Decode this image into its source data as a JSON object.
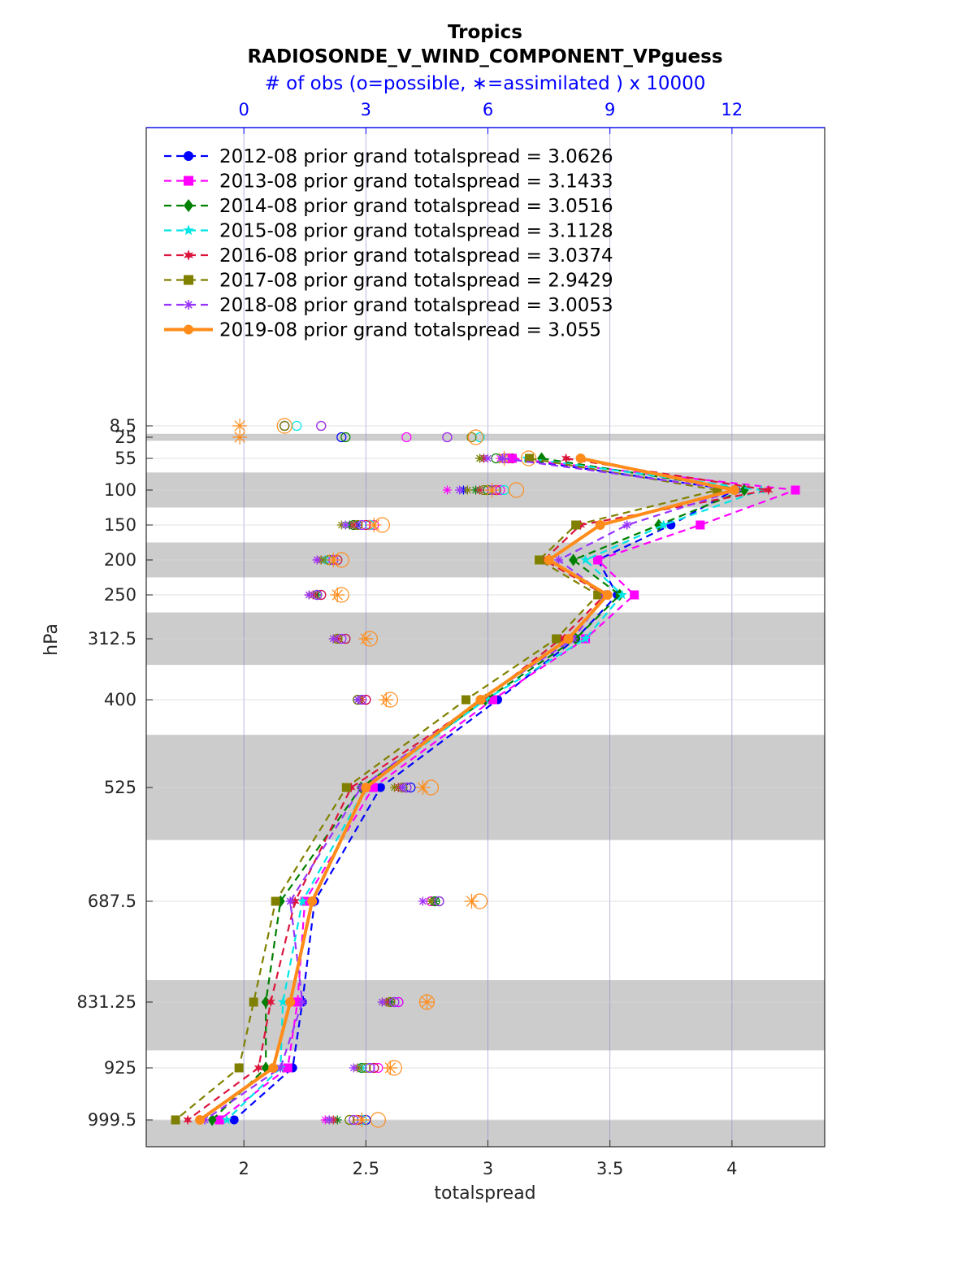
{
  "chart_data": {
    "type": "line",
    "title": "Tropics",
    "subtitle": "RADIOSONDE_V_WIND_COMPONENT_VPguess",
    "top_axis_label": "# of obs (o=possible, ∗=assimilated ) x 10000",
    "xlabel": "totalspread",
    "ylabel": "hPa",
    "xlim": [
      1.6,
      4.38
    ],
    "xticks": [
      "2",
      "2.5",
      "3",
      "3.5",
      "4"
    ],
    "top_xlim": [
      -2.4,
      14.28
    ],
    "top_xticks": [
      "0",
      "3",
      "6",
      "9",
      "12"
    ],
    "y_scale": "pressure (reversed)",
    "yticks": [
      "8.5",
      "25",
      "55",
      "100",
      "150",
      "200",
      "250",
      "312.5",
      "400",
      "525",
      "687.5",
      "831.25",
      "925",
      "999.5"
    ],
    "grid": true,
    "legend_position": "top-left",
    "shaded_bands_hPa": [
      [
        20,
        30
      ],
      [
        75,
        125
      ],
      [
        175,
        225
      ],
      [
        275,
        350
      ],
      [
        450,
        600
      ],
      [
        800,
        900
      ],
      [
        1000,
        1050
      ]
    ],
    "levels": [
      55,
      100,
      150,
      200,
      250,
      312.5,
      400,
      525,
      687.5,
      831.25,
      925,
      999.5
    ],
    "series": [
      {
        "name": "2012-08 prior grand totalspread = 3.0626",
        "color": "#0000ff",
        "marker": "circle",
        "style": "dashed",
        "values": [
          3.1,
          4.01,
          3.75,
          3.45,
          3.53,
          3.36,
          3.04,
          2.56,
          2.29,
          2.24,
          2.2,
          1.96
        ],
        "obs_possible": [
          6.6,
          6.2,
          3.1,
          2.2,
          1.9,
          2.5,
          3.0,
          4.1,
          4.8,
          3.8,
          3.2,
          3.0
        ],
        "obs_assimilated": [
          5.9,
          5.4,
          2.8,
          2.0,
          1.8,
          2.3,
          2.8,
          3.9,
          4.7,
          3.6,
          2.8,
          2.1
        ]
      },
      {
        "name": "2013-08 prior grand totalspread = 3.1433",
        "color": "#ff00ff",
        "marker": "square",
        "style": "dashed",
        "values": [
          3.1,
          4.26,
          3.87,
          3.45,
          3.6,
          3.4,
          3.02,
          2.53,
          2.25,
          2.22,
          2.18,
          1.9
        ],
        "obs_possible": [
          6.5,
          6.3,
          3.2,
          2.2,
          1.8,
          2.4,
          3.0,
          4.0,
          4.6,
          3.8,
          3.3,
          2.9
        ],
        "obs_assimilated": [
          6.3,
          5.0,
          2.6,
          1.8,
          1.6,
          2.3,
          2.8,
          3.8,
          4.4,
          3.6,
          2.8,
          2.0
        ]
      },
      {
        "name": "2014-08 prior grand totalspread = 3.0516",
        "color": "#008000",
        "marker": "diamond",
        "style": "dashed",
        "values": [
          3.22,
          4.05,
          3.7,
          3.35,
          3.54,
          3.36,
          2.99,
          2.48,
          2.15,
          2.09,
          2.09,
          1.87
        ],
        "obs_possible": [
          6.2,
          6.0,
          2.7,
          2.1,
          1.8,
          2.3,
          2.8,
          4.0,
          4.7,
          3.6,
          2.9,
          2.6
        ],
        "obs_assimilated": [
          5.8,
          5.7,
          2.6,
          2.0,
          1.8,
          2.3,
          2.8,
          3.9,
          4.7,
          3.6,
          2.9,
          2.3
        ]
      },
      {
        "name": "2015-08 prior grand totalspread = 3.1128",
        "color": "#00e5e5",
        "marker": "star",
        "style": "dashed",
        "values": [
          3.16,
          4.12,
          3.72,
          3.4,
          3.55,
          3.4,
          2.99,
          2.5,
          2.24,
          2.16,
          2.15,
          1.93
        ],
        "obs_possible": [
          6.6,
          6.4,
          3.1,
          2.3,
          1.8,
          2.5,
          2.9,
          4.0,
          4.8,
          3.7,
          3.1,
          2.9
        ],
        "obs_assimilated": [
          5.9,
          5.8,
          2.5,
          2.0,
          1.7,
          2.3,
          2.8,
          3.9,
          4.6,
          3.5,
          2.9,
          2.1
        ]
      },
      {
        "name": "2016-08 prior grand totalspread = 3.0374",
        "color": "#dc143c",
        "marker": "hexagram",
        "style": "dashed",
        "values": [
          3.32,
          4.15,
          3.38,
          3.23,
          3.48,
          3.3,
          2.98,
          2.44,
          2.21,
          2.11,
          2.06,
          1.77
        ],
        "obs_possible": [
          6.6,
          6.2,
          3.0,
          2.3,
          1.9,
          2.5,
          3.0,
          4.0,
          4.8,
          3.7,
          3.2,
          2.8
        ],
        "obs_assimilated": [
          5.9,
          5.8,
          2.7,
          1.9,
          1.7,
          2.3,
          2.9,
          3.8,
          4.6,
          3.5,
          2.8,
          2.2
        ]
      },
      {
        "name": "2017-08 prior grand totalspread = 2.9429",
        "color": "#808000",
        "marker": "square",
        "style": "dashed",
        "values": [
          3.17,
          3.94,
          3.36,
          3.21,
          3.45,
          3.28,
          2.91,
          2.42,
          2.13,
          2.04,
          1.98,
          1.72
        ],
        "obs_possible": [
          6.4,
          5.9,
          2.8,
          2.1,
          1.8,
          2.3,
          2.8,
          3.9,
          4.8,
          3.6,
          3.0,
          2.6
        ],
        "obs_assimilated": [
          5.8,
          5.5,
          2.4,
          1.9,
          1.6,
          2.2,
          2.8,
          3.7,
          4.6,
          3.4,
          2.8,
          2.1
        ]
      },
      {
        "name": "2018-08 prior grand totalspread = 3.0053",
        "color": "#9933ff",
        "marker": "asterisk",
        "style": "dashed",
        "values": [
          3.06,
          4.02,
          3.57,
          3.29,
          3.48,
          3.35,
          2.97,
          2.48,
          2.19,
          2.24,
          2.15,
          1.84
        ],
        "obs_possible": [
          6.4,
          6.1,
          2.9,
          2.2,
          1.8,
          2.4,
          2.9,
          4.0,
          4.8,
          3.7,
          3.1,
          2.7
        ],
        "obs_assimilated": [
          6.0,
          5.3,
          2.5,
          1.8,
          1.6,
          2.2,
          2.8,
          3.9,
          4.4,
          3.4,
          2.7,
          2.1
        ]
      },
      {
        "name": "2019-08 prior grand totalspread = 3.055",
        "color": "#ff8c1a",
        "marker": "circle",
        "style": "solid",
        "values": [
          3.38,
          4.01,
          3.46,
          3.25,
          3.49,
          3.33,
          2.97,
          2.5,
          2.28,
          2.19,
          2.12,
          1.82
        ],
        "obs_possible": [
          7.0,
          6.7,
          3.4,
          2.4,
          2.4,
          3.1,
          3.6,
          4.6,
          5.8,
          4.5,
          3.7,
          3.3
        ],
        "obs_assimilated": [
          6.4,
          6.1,
          3.2,
          2.2,
          2.3,
          3.0,
          3.5,
          4.4,
          5.6,
          4.5,
          3.6,
          2.9
        ]
      }
    ],
    "top_level_obs": [
      {
        "level": 8.5,
        "obs_possible": [
          1.0,
          1.0,
          1.0,
          1.3,
          1.9,
          1.0,
          1.9,
          1.0
        ],
        "obs_assimilated": [
          null,
          null,
          null,
          null,
          null,
          null,
          null,
          -0.1
        ]
      },
      {
        "level": 25,
        "obs_possible": [
          2.4,
          4.0,
          2.5,
          5.8,
          5.0,
          5.6,
          5.0,
          5.7
        ],
        "obs_assimilated": [
          null,
          null,
          null,
          null,
          null,
          null,
          null,
          -0.1
        ]
      }
    ]
  }
}
